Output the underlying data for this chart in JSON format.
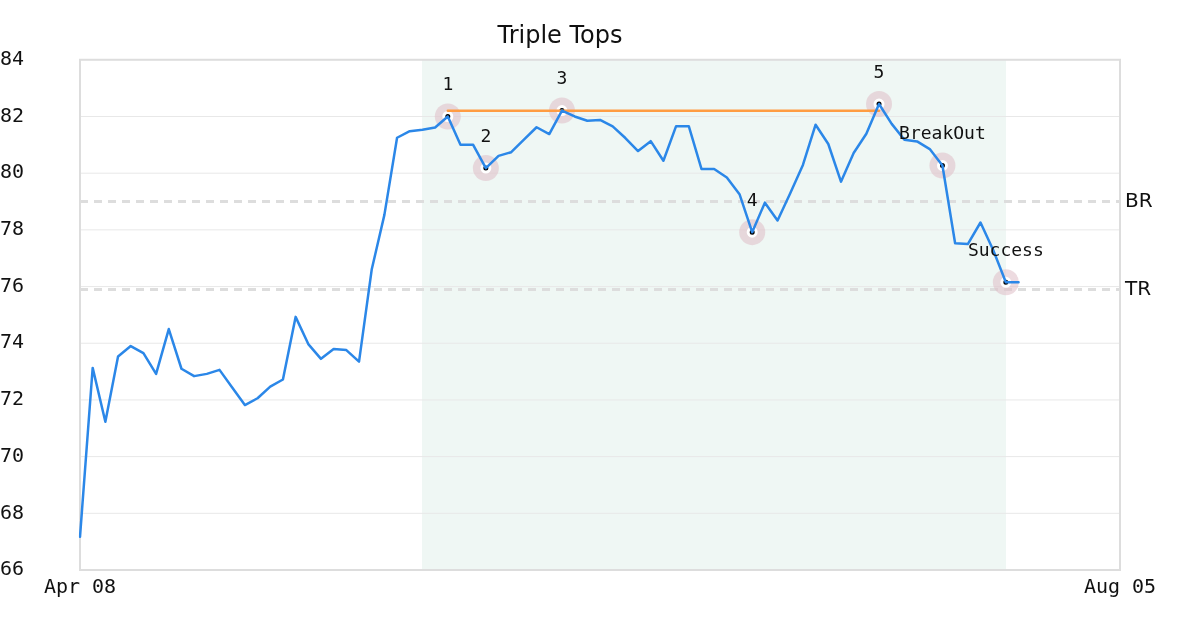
{
  "chart_data": {
    "type": "line",
    "title": "Triple Tops",
    "categories": [
      "Apr 08",
      null,
      null,
      null,
      null,
      null,
      null,
      null,
      null,
      null,
      null,
      null,
      null,
      null,
      null,
      null,
      null,
      null,
      null,
      null,
      null,
      null,
      null,
      null,
      null,
      null,
      null,
      null,
      null,
      null,
      null,
      null,
      null,
      null,
      null,
      null,
      null,
      null,
      null,
      null,
      null,
      null,
      null,
      null,
      null,
      null,
      null,
      null,
      null,
      null,
      null,
      null,
      null,
      null,
      null,
      null,
      null,
      null,
      null,
      null,
      null,
      null,
      null,
      null,
      null,
      null,
      null,
      null,
      null,
      null,
      null,
      null,
      null,
      null,
      null,
      null,
      null,
      null,
      null,
      null,
      null,
      null,
      "Aug 05"
    ],
    "ylim": [
      66,
      84
    ],
    "yticks": [
      66,
      68,
      70,
      72,
      74,
      76,
      78,
      80,
      82,
      84
    ],
    "grid": "y",
    "series": [
      {
        "color": "#2b87e8",
        "marker": "none",
        "values": [
          67.17,
          73.13,
          71.23,
          73.53,
          73.9,
          73.65,
          72.92,
          74.5,
          73.1,
          72.84,
          72.92,
          73.06,
          72.44,
          71.82,
          72.06,
          72.47,
          72.72,
          74.93,
          73.97,
          73.45,
          73.8,
          73.76,
          73.35,
          76.6,
          78.53,
          81.25,
          81.48,
          81.53,
          81.61,
          82.0,
          81.0,
          81.0,
          80.18,
          80.61,
          80.74,
          81.18,
          81.62,
          81.38,
          82.21,
          82.0,
          81.85,
          81.88,
          81.65,
          81.24,
          80.78,
          81.13,
          80.44,
          81.66,
          81.66,
          80.15,
          80.15,
          79.85,
          79.26,
          77.92,
          78.96,
          78.33,
          79.29,
          80.29,
          81.71,
          81.03,
          79.7,
          80.71,
          81.39,
          82.44,
          81.74,
          81.18,
          81.12,
          80.85,
          80.27,
          77.53,
          77.5,
          78.26,
          77.29,
          76.15,
          76.15,
          null,
          null,
          null,
          null,
          null,
          null,
          null,
          null
        ]
      },
      {
        "color": "#ff9c42",
        "marker": "none",
        "values": [
          null,
          null,
          null,
          null,
          null,
          null,
          null,
          null,
          null,
          null,
          null,
          null,
          null,
          null,
          null,
          null,
          null,
          null,
          null,
          null,
          null,
          null,
          null,
          null,
          null,
          null,
          null,
          null,
          null,
          82.2,
          82.2,
          82.2,
          82.2,
          82.2,
          82.2,
          82.2,
          82.2,
          82.2,
          82.2,
          82.2,
          82.2,
          82.2,
          82.2,
          82.2,
          82.2,
          82.2,
          82.2,
          82.2,
          82.2,
          82.2,
          82.2,
          82.2,
          82.2,
          82.2,
          82.2,
          82.2,
          82.2,
          82.2,
          82.2,
          82.2,
          82.2,
          82.2,
          82.2,
          82.2,
          null,
          null,
          null,
          null,
          null,
          null,
          null,
          null,
          null,
          null,
          null,
          null,
          null,
          null,
          null,
          null,
          null,
          null,
          null
        ]
      },
      {
        "type": "scatter",
        "color": "#000000",
        "values": [
          null,
          null,
          null,
          null,
          null,
          null,
          null,
          null,
          null,
          null,
          null,
          null,
          null,
          null,
          null,
          null,
          null,
          null,
          null,
          null,
          null,
          null,
          null,
          null,
          null,
          null,
          null,
          null,
          null,
          82.0,
          null,
          null,
          80.18,
          null,
          null,
          null,
          null,
          null,
          82.21,
          null,
          null,
          null,
          null,
          null,
          null,
          null,
          null,
          null,
          null,
          null,
          null,
          null,
          null,
          77.92,
          null,
          null,
          null,
          null,
          null,
          null,
          null,
          null,
          null,
          82.44,
          null,
          null,
          null,
          null,
          80.27,
          null,
          null,
          null,
          null,
          76.15,
          null,
          null,
          null,
          null,
          null,
          null,
          null,
          null,
          null
        ],
        "marker": "circle"
      }
    ],
    "annotations": [
      "1",
      "2",
      "3",
      "4",
      "5",
      "BreakOut",
      "Success"
    ],
    "ref_lines": [
      {
        "axis": "y",
        "value": 79.0,
        "label": "BR",
        "color": "#dddddd",
        "line_style": "dashed"
      },
      {
        "axis": "y",
        "value": 75.9,
        "label": "TR",
        "color": "#dddddd",
        "line_style": "dashed"
      }
    ]
  }
}
